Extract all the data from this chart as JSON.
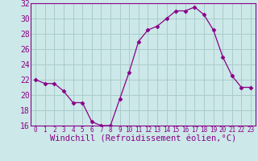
{
  "x": [
    0,
    1,
    2,
    3,
    4,
    5,
    6,
    7,
    8,
    9,
    10,
    11,
    12,
    13,
    14,
    15,
    16,
    17,
    18,
    19,
    20,
    21,
    22,
    23
  ],
  "y": [
    22,
    21.5,
    21.5,
    20.5,
    19,
    19,
    16.5,
    16,
    16,
    19.5,
    23,
    27,
    28.5,
    29,
    30,
    31,
    31,
    31.5,
    30.5,
    28.5,
    25,
    22.5,
    21,
    21
  ],
  "xlabel": "Windchill (Refroidissement éolien,°C)",
  "xlim": [
    -0.5,
    23.5
  ],
  "ylim": [
    16,
    32
  ],
  "yticks": [
    16,
    18,
    20,
    22,
    24,
    26,
    28,
    30,
    32
  ],
  "xticks": [
    0,
    1,
    2,
    3,
    4,
    5,
    6,
    7,
    8,
    9,
    10,
    11,
    12,
    13,
    14,
    15,
    16,
    17,
    18,
    19,
    20,
    21,
    22,
    23
  ],
  "line_color": "#880088",
  "marker": "D",
  "marker_size": 2.5,
  "bg_color": "#cce8e8",
  "grid_color": "#aacccc",
  "xlabel_fontsize": 7.5,
  "ytick_fontsize": 7,
  "xtick_fontsize": 5.5
}
